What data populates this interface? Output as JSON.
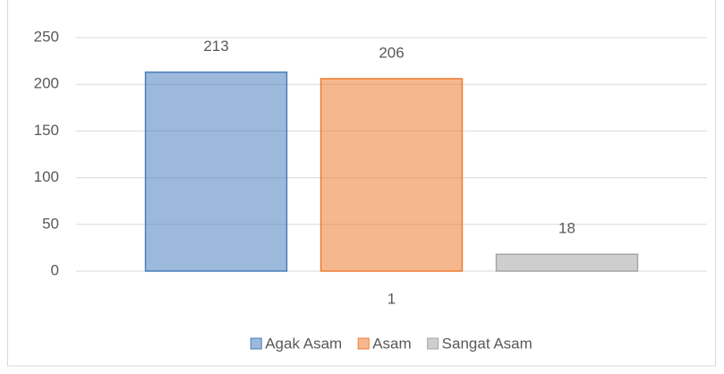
{
  "chart_data": {
    "type": "bar",
    "categories": [
      "1"
    ],
    "series": [
      {
        "name": "Agak Asam",
        "color": "#4a7ebb",
        "values": [
          213
        ]
      },
      {
        "name": "Asam",
        "color": "#ed7d31",
        "values": [
          206
        ]
      },
      {
        "name": "Sangat Asam",
        "color": "#a5a5a5",
        "values": [
          18
        ]
      }
    ],
    "ylim": [
      0,
      250
    ],
    "yticks": [
      0,
      50,
      100,
      150,
      200,
      250
    ],
    "grid": true,
    "legend": "bottom"
  }
}
